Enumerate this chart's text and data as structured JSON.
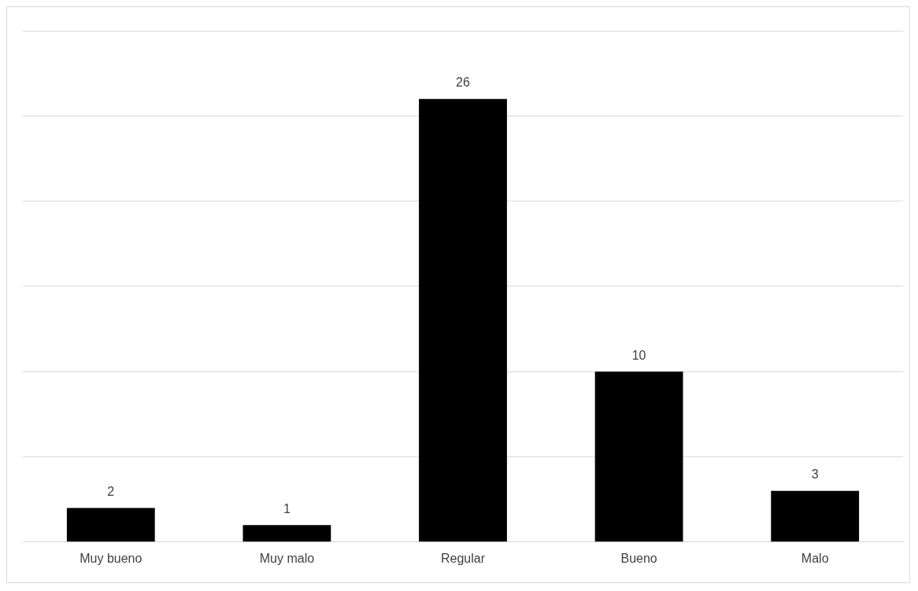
{
  "chart_data": {
    "type": "bar",
    "categories": [
      "Muy bueno",
      "Muy malo",
      "Regular",
      "Bueno",
      "Malo"
    ],
    "values": [
      2,
      1,
      26,
      10,
      3
    ],
    "color": "#000000",
    "ylim": [
      0,
      30
    ],
    "yticks": [
      {
        "value": 0,
        "label": null
      },
      {
        "value": 5,
        "label": null
      },
      {
        "value": 10,
        "label": null
      },
      {
        "value": 15,
        "label": null
      },
      {
        "value": 20,
        "label": null
      },
      {
        "value": 25,
        "label": null
      },
      {
        "value": 30,
        "label": null
      }
    ],
    "tick_labels": "x",
    "grid": "y",
    "data_labels": true
  }
}
